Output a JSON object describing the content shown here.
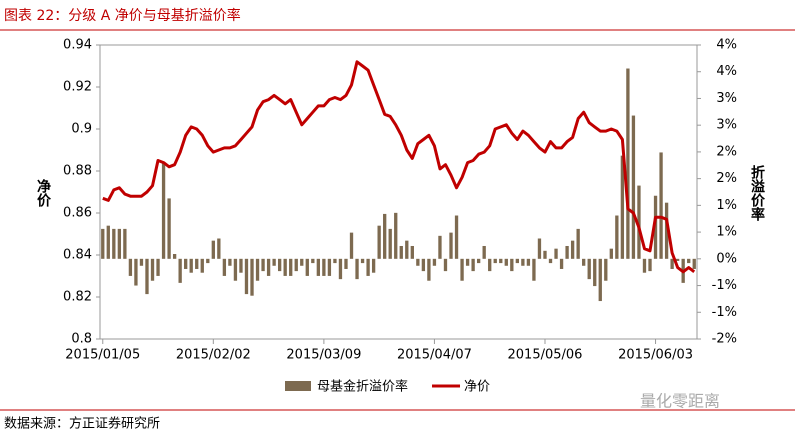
{
  "chart_data": {
    "type": "bar-line",
    "title": "图表 22：分级 A 净价与母基折溢价率",
    "source": "数据来源：方正证券研究所",
    "watermark": "量化零距离",
    "y_label": "净价",
    "y2_label": "折溢价率",
    "categories": [
      "2015/01/05",
      null,
      null,
      null,
      null,
      null,
      null,
      null,
      null,
      null,
      null,
      null,
      null,
      null,
      null,
      null,
      null,
      null,
      null,
      null,
      "2015/02/02",
      null,
      null,
      null,
      null,
      null,
      null,
      null,
      null,
      null,
      null,
      null,
      null,
      null,
      null,
      null,
      null,
      null,
      null,
      null,
      "2015/03/09",
      null,
      null,
      null,
      null,
      null,
      null,
      null,
      null,
      null,
      null,
      null,
      null,
      null,
      null,
      null,
      null,
      null,
      null,
      null,
      "2015/04/07",
      null,
      null,
      null,
      null,
      null,
      null,
      null,
      null,
      null,
      null,
      null,
      null,
      null,
      null,
      null,
      null,
      null,
      null,
      null,
      "2015/05/06",
      null,
      null,
      null,
      null,
      null,
      null,
      null,
      null,
      null,
      null,
      null,
      null,
      null,
      null,
      null,
      null,
      null,
      null,
      null,
      "2015/06/03",
      null,
      null,
      null,
      null,
      null,
      null,
      null
    ],
    "series": [
      {
        "name": "母基金折溢价率",
        "color": "#7d6a50",
        "axis": "y2",
        "kind": "bar",
        "values": [
          0.56,
          0.62,
          0.56,
          0.56,
          0.56,
          -0.32,
          -0.5,
          -0.13,
          -0.66,
          -0.41,
          -0.32,
          1.8,
          1.13,
          0.09,
          -0.45,
          -0.19,
          -0.26,
          -0.19,
          -0.26,
          -0.08,
          0.34,
          0.38,
          -0.32,
          -0.13,
          -0.41,
          -0.26,
          -0.66,
          -0.69,
          -0.41,
          -0.23,
          -0.32,
          -0.13,
          -0.23,
          -0.32,
          -0.32,
          -0.23,
          -0.13,
          -0.32,
          -0.08,
          -0.32,
          -0.32,
          -0.32,
          -0.08,
          -0.38,
          -0.19,
          0.49,
          -0.38,
          -0.08,
          -0.32,
          -0.26,
          0.62,
          0.84,
          0.56,
          0.86,
          0.24,
          0.34,
          0.24,
          -0.13,
          -0.23,
          -0.41,
          -0.13,
          0.43,
          -0.23,
          0.49,
          0.81,
          -0.41,
          -0.13,
          -0.23,
          -0.08,
          0.24,
          -0.23,
          -0.08,
          -0.08,
          -0.13,
          -0.23,
          -0.08,
          -0.13,
          -0.13,
          -0.41,
          0.38,
          0.15,
          -0.08,
          0.19,
          -0.19,
          0.24,
          0.34,
          0.56,
          -0.13,
          -0.38,
          -0.51,
          -0.79,
          -0.41,
          0.19,
          0.81,
          1.93,
          3.56,
          2.68,
          1.37,
          -0.26,
          -0.23,
          1.18,
          1.99,
          1.05,
          -0.19,
          -0.04,
          -0.45,
          -0.08,
          -0.19
        ]
      },
      {
        "name": "净价",
        "color": "#c00000",
        "axis": "y",
        "kind": "line",
        "values": [
          0.867,
          0.866,
          0.871,
          0.872,
          0.869,
          0.868,
          0.868,
          0.868,
          0.87,
          0.873,
          0.885,
          0.884,
          0.882,
          0.883,
          0.889,
          0.897,
          0.901,
          0.9,
          0.897,
          0.892,
          0.889,
          0.89,
          0.891,
          0.891,
          0.892,
          0.895,
          0.898,
          0.901,
          0.909,
          0.913,
          0.914,
          0.916,
          0.914,
          0.912,
          0.914,
          0.908,
          0.902,
          0.905,
          0.908,
          0.911,
          0.911,
          0.914,
          0.915,
          0.914,
          0.916,
          0.921,
          0.932,
          0.93,
          0.928,
          0.921,
          0.914,
          0.907,
          0.906,
          0.902,
          0.897,
          0.89,
          0.886,
          0.893,
          0.895,
          0.897,
          0.892,
          0.881,
          0.883,
          0.878,
          0.872,
          0.877,
          0.884,
          0.885,
          0.888,
          0.889,
          0.892,
          0.9,
          0.901,
          0.902,
          0.898,
          0.895,
          0.899,
          0.897,
          0.894,
          0.891,
          0.889,
          0.894,
          0.891,
          0.891,
          0.894,
          0.896,
          0.905,
          0.908,
          0.903,
          0.901,
          0.899,
          0.899,
          0.9,
          0.899,
          0.895,
          0.862,
          0.86,
          0.853,
          0.843,
          0.842,
          0.858,
          0.858,
          0.857,
          0.841,
          0.834,
          0.832,
          0.834,
          0.832
        ]
      }
    ],
    "ylim": [
      0.8,
      0.94
    ],
    "yticks": [
      0.8,
      0.82,
      0.84,
      0.86,
      0.88,
      0.9,
      0.92,
      0.94
    ],
    "y2lim": [
      -1.5,
      4
    ],
    "y2ticks": [
      {
        "value": -1.5,
        "label": "-2%"
      },
      {
        "value": -1,
        "label": "-1%"
      },
      {
        "value": -0.5,
        "label": "-1%"
      },
      {
        "value": 0,
        "label": "0%"
      },
      {
        "value": 0.5,
        "label": "1%"
      },
      {
        "value": 1,
        "label": "1%"
      },
      {
        "value": 1.5,
        "label": "2%"
      },
      {
        "value": 2,
        "label": "2%"
      },
      {
        "value": 2.5,
        "label": "3%"
      },
      {
        "value": 3,
        "label": "3%"
      },
      {
        "value": 3.5,
        "label": "4%"
      },
      {
        "value": 4,
        "label": "4%"
      }
    ],
    "grid": false,
    "legend": "bottom"
  }
}
